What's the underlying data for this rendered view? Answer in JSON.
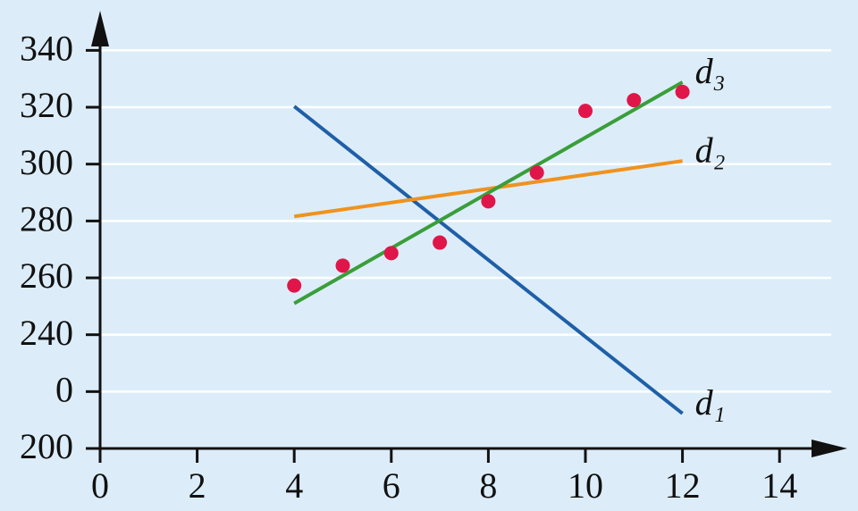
{
  "chart_data": {
    "type": "line",
    "xlim": [
      0,
      15.3
    ],
    "ylim": [
      200,
      353
    ],
    "xticks": [
      0,
      2,
      4,
      6,
      8,
      10,
      12,
      14
    ],
    "yticks": [
      200,
      {
        "value": 220,
        "label": "0"
      },
      240,
      260,
      280,
      300,
      320,
      340
    ],
    "grid": true,
    "series": [
      {
        "name": "d₁",
        "type": "line",
        "color": "#1f5fa8",
        "x": [
          4,
          12
        ],
        "values": [
          320.3,
          212.3
        ]
      },
      {
        "name": "d₂",
        "type": "line",
        "color": "#f0921e",
        "x": [
          4,
          12
        ],
        "values": [
          281.6,
          301.1
        ]
      },
      {
        "name": "d₃",
        "type": "line",
        "color": "#3a9e3a",
        "x": [
          4,
          12
        ],
        "values": [
          251,
          328.8
        ]
      },
      {
        "type": "scatter",
        "color": "#e0164a",
        "x": [
          4,
          5,
          6,
          7,
          8,
          9,
          10,
          11,
          12
        ],
        "values": [
          257.3,
          264.3,
          268.7,
          272.4,
          286.9,
          297,
          318.7,
          322.5,
          325.4
        ]
      }
    ]
  }
}
